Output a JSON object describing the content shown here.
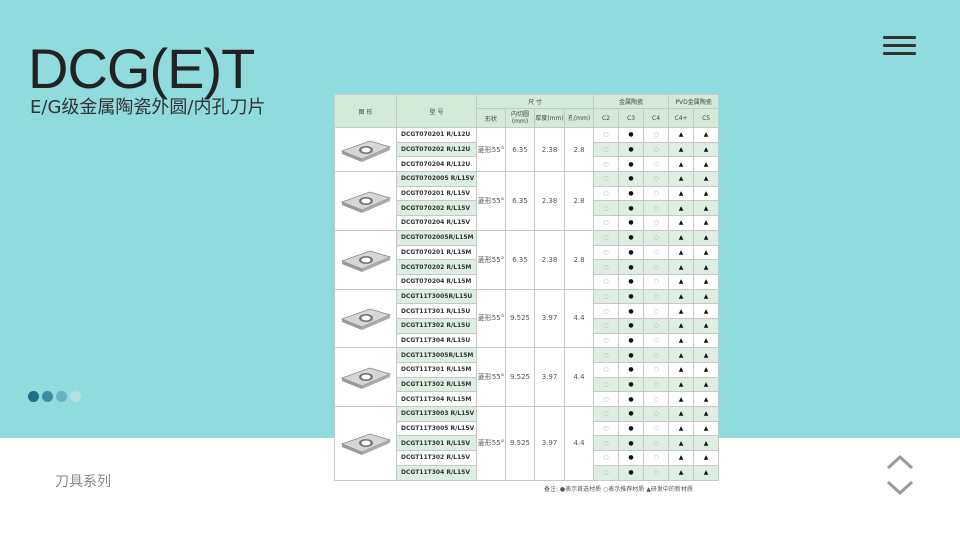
{
  "header": {
    "title": "DCG(E)T",
    "subtitle": "E/G级金属陶瓷外圆/内孔刀片",
    "menu_icon": "hamburger-menu-icon"
  },
  "footer": {
    "label": "刀具系列"
  },
  "colors": {
    "background": "#90dbdc",
    "table_header": "#d4ead9",
    "row_alt": "#dcefe2",
    "dots": [
      "#1e6f86",
      "#3d8d9f",
      "#6bb1bc",
      "#b5e0e2"
    ]
  },
  "table": {
    "headers": {
      "figure": "图 形",
      "model": "型 号",
      "size": "尺 寸",
      "cermet": "金属陶瓷",
      "pvd_cermet": "PVD金属陶瓷",
      "shape": "形状",
      "ic": "内切圆(mm)",
      "thickness": "厚度(mm)",
      "hole": "孔(mm)",
      "grades": [
        "C2",
        "C3",
        "C4",
        "C4+",
        "C5"
      ]
    },
    "groups": [
      {
        "shape": "菱形55°",
        "ic": "6.35",
        "thickness": "2.38",
        "hole": "2.8",
        "models": [
          "DCGT070201 R/L12U",
          "DCGT070202 R/L12U",
          "DCGT070204 R/L12U"
        ]
      },
      {
        "shape": "菱形55°",
        "ic": "6.35",
        "thickness": "2.38",
        "hole": "2.8",
        "models": [
          "DCGT0702005 R/L15V",
          "DCGT070201 R/L15V",
          "DCGT070202 R/L15V",
          "DCGT070204 R/L15V"
        ]
      },
      {
        "shape": "菱形55°",
        "ic": "6.35",
        "thickness": "2.38",
        "hole": "2.8",
        "models": [
          "DCGT0702005R/L15M",
          "DCGT070201 R/L15M",
          "DCGT070202 R/L15M",
          "DCGT070204 R/L15M"
        ]
      },
      {
        "shape": "菱形55°",
        "ic": "9.525",
        "thickness": "3.97",
        "hole": "4.4",
        "models": [
          "DCGT11T3005R/L15U",
          "DCGT11T301 R/L15U",
          "DCGT11T302 R/L15U",
          "DCGT11T304 R/L15U"
        ]
      },
      {
        "shape": "菱形55°",
        "ic": "9.525",
        "thickness": "3.97",
        "hole": "4.4",
        "models": [
          "DCGT11T3005R/L15M",
          "DCGT11T301 R/L15M",
          "DCGT11T302 R/L15M",
          "DCGT11T304 R/L15M"
        ]
      },
      {
        "shape": "菱形55°",
        "ic": "9.525",
        "thickness": "3.97",
        "hole": "4.4",
        "models": [
          "DCGT11T3003 R/L15V",
          "DCGT11T3005 R/L15V",
          "DCGT11T301 R/L15V",
          "DCGT11T302 R/L15V",
          "DCGT11T304 R/L15V"
        ]
      }
    ],
    "grade_marks": [
      "○",
      "●",
      "○",
      "▲",
      "▲"
    ],
    "legend": "备注: ●表示首选材质 ○表示推荐材质 ▲研发中的新材质"
  }
}
